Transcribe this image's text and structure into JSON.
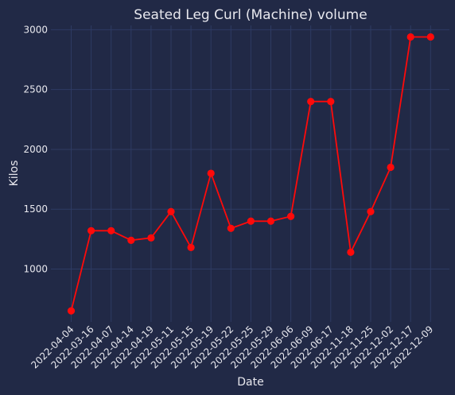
{
  "chart_data": {
    "type": "line",
    "title": "Seated Leg Curl (Machine) volume",
    "xlabel": "Date",
    "ylabel": "Kilos",
    "categories": [
      "2022-04-04",
      "2022-03-16",
      "2022-04-07",
      "2022-04-14",
      "2022-04-19",
      "2022-05-11",
      "2022-05-15",
      "2022-05-19",
      "2022-05-22",
      "2022-05-25",
      "2022-05-29",
      "2022-06-06",
      "2022-06-09",
      "2022-06-17",
      "2022-11-18",
      "2022-11-25",
      "2022-12-02",
      "2022-12-17",
      "2022-12-09"
    ],
    "series": [
      {
        "values": [
          650,
          1320,
          1320,
          1240,
          1260,
          1480,
          1180,
          1800,
          1340,
          1400,
          1400,
          1440,
          2400,
          2400,
          1140,
          1480,
          1850,
          2940,
          2940
        ],
        "color": "#ff0a0a"
      }
    ],
    "yticks": [
      1000,
      1500,
      2000,
      2500,
      3000
    ],
    "ylim": [
      558,
      3036
    ],
    "grid": true,
    "background": "#212946",
    "grid_color": "#2e3b63",
    "text_color": "#e8e8ee"
  }
}
